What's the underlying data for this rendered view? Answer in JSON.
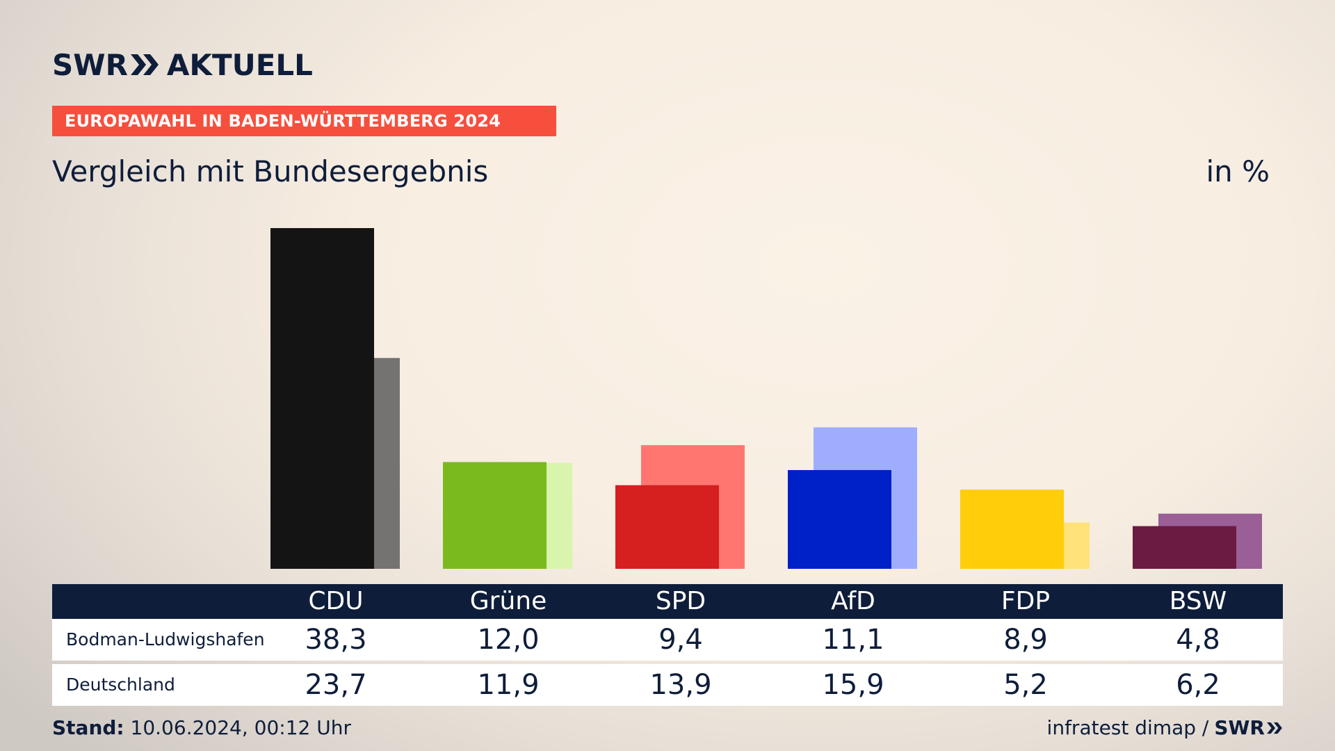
{
  "brand": {
    "swr": "SWR",
    "aktuell": "AKTUELL"
  },
  "kicker": "EUROPAWAHL IN BADEN-WÜRTTEMBERG 2024",
  "title": "Vergleich mit Bundesergebnis",
  "unit": "in %",
  "colors": {
    "background": "#f7ede1",
    "navy": "#0e1d3a",
    "kicker": "#f74f3e"
  },
  "chart_data": {
    "type": "bar",
    "categories": [
      "CDU",
      "Grüne",
      "SPD",
      "AfD",
      "FDP",
      "BSW"
    ],
    "series": [
      {
        "name": "Bodman-Ludwigshafen",
        "values": [
          38.3,
          12.0,
          9.4,
          11.1,
          8.9,
          4.8
        ]
      },
      {
        "name": "Deutschland",
        "values": [
          23.7,
          11.9,
          13.9,
          15.9,
          5.2,
          6.2
        ]
      }
    ],
    "display_values": {
      "Bodman-Ludwigshafen": [
        "38,3",
        "12,0",
        "9,4",
        "11,1",
        "8,9",
        "4,8"
      ],
      "Deutschland": [
        "23,7",
        "11,9",
        "13,9",
        "15,9",
        "5,2",
        "6,2"
      ]
    },
    "colors_primary": [
      "#141414",
      "#7aba1f",
      "#d61f1f",
      "#0020c8",
      "#ffcd0a",
      "#6b1a42"
    ],
    "colors_secondary": [
      "#757371",
      "#d9f5ad",
      "#ff7670",
      "#9fadff",
      "#ffe27a",
      "#9a5f96"
    ],
    "ylim": [
      0,
      38.3
    ],
    "grid": false
  },
  "table": {
    "rows": [
      {
        "label": "Bodman-Ludwigshafen"
      },
      {
        "label": "Deutschland"
      }
    ]
  },
  "footer": {
    "stand_label": "Stand:",
    "stand_value": "10.06.2024, 00:12 Uhr",
    "source": "infratest dimap /",
    "source_brand": "SWR"
  }
}
